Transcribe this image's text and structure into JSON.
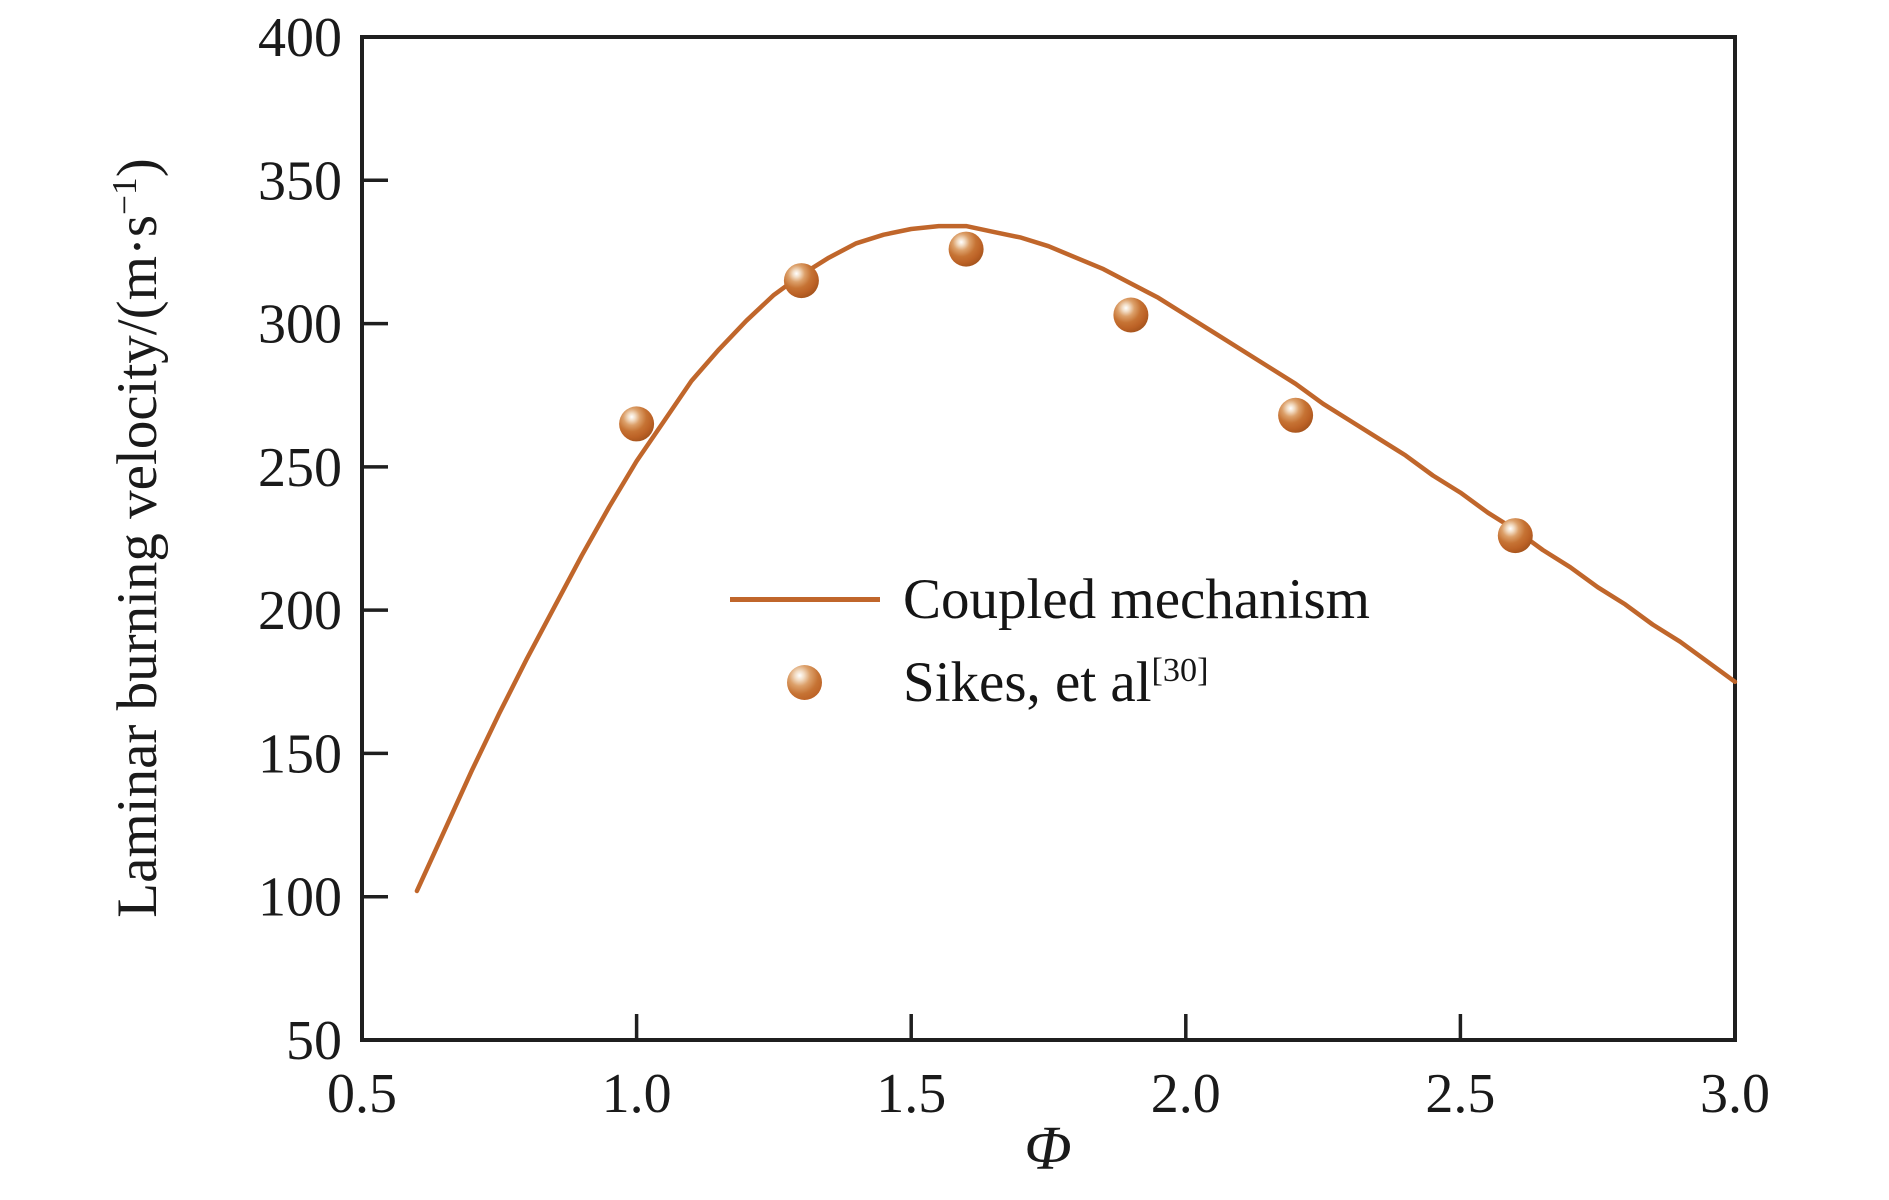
{
  "figure": {
    "background": "#FFFFFF",
    "text_color": "#1A1A1A",
    "axis_color": "#1F1F1F"
  },
  "axis_labels": {
    "x": "Φ",
    "y_main": "Laminar burning velocity/(m·s",
    "y_sup": "−1",
    "y_close": ")"
  },
  "legend": {
    "line_label": "Coupled mechanism",
    "scatter_label": "Sikes, et al",
    "scatter_sup": "[30]"
  },
  "chart_data": {
    "type": "line",
    "title": "",
    "xlabel": "Φ",
    "ylabel": "Laminar burning velocity/(m·s⁻¹)",
    "xlim": [
      0.5,
      3.0
    ],
    "ylim": [
      50,
      400
    ],
    "xticks": [
      "0.5",
      "1.0",
      "1.5",
      "2.0",
      "2.5",
      "3.0"
    ],
    "yticks": [
      "50",
      "100",
      "150",
      "200",
      "250",
      "300",
      "350",
      "400"
    ],
    "grid": false,
    "frame": true,
    "tick_direction": "in",
    "legend_position": "inside-center",
    "series": [
      {
        "name": "Coupled mechanism",
        "type": "line",
        "color": "#C0662B",
        "width": 4.5,
        "points": [
          [
            0.6,
            102
          ],
          [
            0.65,
            123
          ],
          [
            0.7,
            144
          ],
          [
            0.75,
            164
          ],
          [
            0.8,
            183
          ],
          [
            0.85,
            201
          ],
          [
            0.9,
            219
          ],
          [
            0.95,
            236
          ],
          [
            1.0,
            252
          ],
          [
            1.05,
            266
          ],
          [
            1.1,
            280
          ],
          [
            1.15,
            291
          ],
          [
            1.2,
            301
          ],
          [
            1.25,
            310
          ],
          [
            1.3,
            317
          ],
          [
            1.35,
            323
          ],
          [
            1.4,
            328
          ],
          [
            1.45,
            331
          ],
          [
            1.5,
            333
          ],
          [
            1.55,
            334
          ],
          [
            1.6,
            334
          ],
          [
            1.65,
            332
          ],
          [
            1.7,
            330
          ],
          [
            1.75,
            327
          ],
          [
            1.8,
            323
          ],
          [
            1.85,
            319
          ],
          [
            1.9,
            314
          ],
          [
            1.95,
            309
          ],
          [
            2.0,
            303
          ],
          [
            2.05,
            297
          ],
          [
            2.1,
            291
          ],
          [
            2.15,
            285
          ],
          [
            2.2,
            279
          ],
          [
            2.25,
            272
          ],
          [
            2.3,
            266
          ],
          [
            2.35,
            260
          ],
          [
            2.4,
            254
          ],
          [
            2.45,
            247
          ],
          [
            2.5,
            241
          ],
          [
            2.55,
            234
          ],
          [
            2.6,
            228
          ],
          [
            2.65,
            221
          ],
          [
            2.7,
            215
          ],
          [
            2.75,
            208
          ],
          [
            2.8,
            202
          ],
          [
            2.85,
            195
          ],
          [
            2.9,
            189
          ],
          [
            2.95,
            182
          ],
          [
            3.0,
            175
          ]
        ]
      },
      {
        "name": "Sikes, et al",
        "citation_sup": "[30]",
        "type": "scatter",
        "marker": "sphere",
        "radius": 17.5,
        "colors": {
          "body": "#BE6227",
          "rim": "#A3531C",
          "highlight": "#FFFFFF"
        },
        "x": [
          1.0,
          1.3,
          1.6,
          1.9,
          2.2,
          2.6
        ],
        "y": [
          265,
          315,
          326,
          303,
          268,
          226
        ]
      }
    ]
  }
}
